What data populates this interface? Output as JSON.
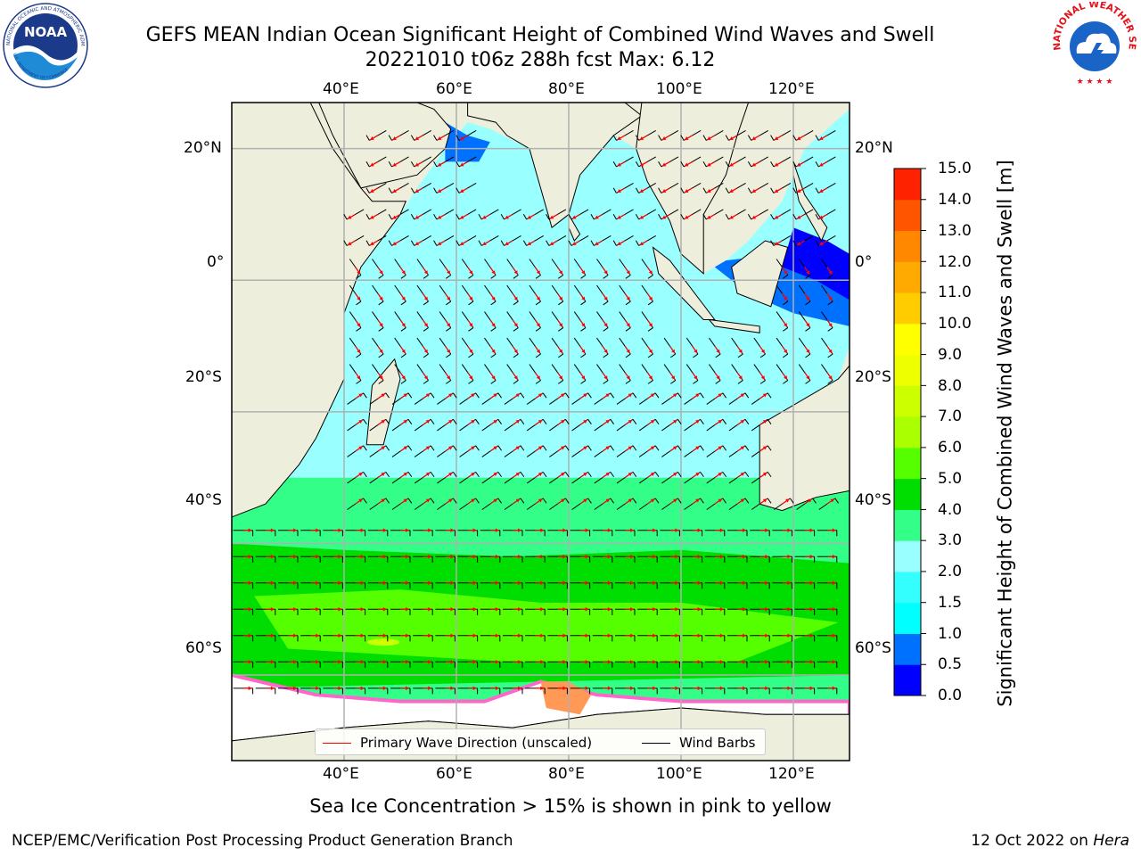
{
  "header": {
    "title_line1": "GEFS MEAN Indian Ocean Significant Height of Combined Wind Waves and Swell",
    "title_line2": "20221010 t06z 288h fcst   Max: 6.12"
  },
  "logos": {
    "left": {
      "icon": "noaa-logo",
      "text": "NOAA",
      "ring_text": "NATIONAL OCEANIC AND ATMOSPHERIC ADMINISTRATION",
      "bottom_text": "U.S. DEPARTMENT OF COMMERCE"
    },
    "right": {
      "icon": "nws-logo",
      "ring_text": "NATIONAL WEATHER SERVICE"
    }
  },
  "map": {
    "lon_range": [
      20,
      130
    ],
    "lat_range": [
      -73,
      27
    ],
    "longitude_labels": [
      "40°E",
      "60°E",
      "80°E",
      "100°E",
      "120°E"
    ],
    "latitude_labels": [
      "20°N",
      "0°",
      "20°S",
      "40°S",
      "60°S"
    ],
    "colors": {
      "land": "#eeeedd",
      "sea_ice": "#ffffff",
      "grid": "#b0b0b0",
      "wave_arrow": "#ff0000",
      "wind_barb": "#000000"
    }
  },
  "colorbar": {
    "title": "Significant Height of Combined Wind Waves and Swell [m]",
    "tick_labels": [
      "0.0",
      "0.5",
      "1.0",
      "1.5",
      "2.0",
      "3.0",
      "4.0",
      "5.0",
      "6.0",
      "7.0",
      "8.0",
      "9.0",
      "10.0",
      "11.0",
      "12.0",
      "13.0",
      "14.0",
      "15.0"
    ],
    "colors": [
      "#0000ff",
      "#0070ff",
      "#00ffff",
      "#33ffff",
      "#99ffff",
      "#33ff88",
      "#00dd00",
      "#55ff00",
      "#aaff00",
      "#ccff00",
      "#eeff00",
      "#ffff00",
      "#ffcc00",
      "#ffaa00",
      "#ff8800",
      "#ff5500",
      "#ff2200"
    ]
  },
  "legend": {
    "items": [
      {
        "label": "Primary Wave Direction (unscaled)",
        "color": "#ff0000"
      },
      {
        "label": "Wind Barbs",
        "color": "#000000"
      }
    ]
  },
  "footer": {
    "note": "Sea Ice Concentration > 15% is shown in pink to yellow",
    "credit_left": "NCEP/EMC/Verification Post Processing Product Generation Branch",
    "date": "12 Oct 2022 on",
    "machine": "Hera"
  }
}
